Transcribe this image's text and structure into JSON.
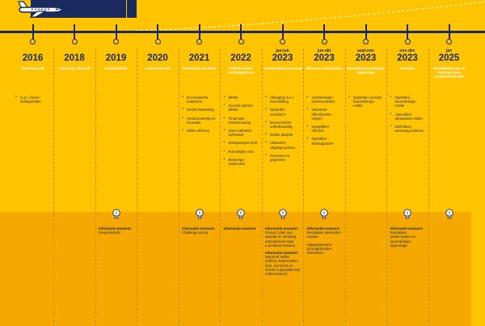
{
  "colors": {
    "navy": "#1a2a5e",
    "yellow": "#FFC300",
    "amber": "#F5A800",
    "white": "#ffffff"
  },
  "icons": {
    "plane": "airplane-icon",
    "bulb": "lightbulb-icon"
  },
  "columns": [
    {
      "pre": "",
      "year": "2016",
      "sub": "Aanvraag LHB",
      "items": [
        "m.e.r. beoor-delingsnotitie"
      ],
      "info": []
    },
    {
      "pre": "",
      "year": "2018",
      "sub": "Aanvraag Vliegveld",
      "items": [],
      "info": []
    },
    {
      "pre": "",
      "year": "2019",
      "sub": "Gesprekstafel",
      "items": [],
      "info": [
        {
          "label": "Informatie-moment:",
          "text": "Gesprekstafel"
        }
      ]
    },
    {
      "pre": "",
      "year": "2020",
      "sub": "Luchtvaart-nota",
      "items": [],
      "info": []
    },
    {
      "pre": "",
      "year": "2021",
      "sub": "Verkenning van Beek",
      "items": [
        "Economische betekenis",
        "Hinder-beperking",
        "Verduurzaming en innovatie",
        "Milieu effecten"
      ],
      "info": [
        {
          "label": "Informatie-moment:",
          "text": "Challenge group"
        }
      ]
    },
    {
      "pre": "",
      "year": "2022",
      "sub": "Politiek beleid-vormingsproces",
      "items": [
        "MKBA",
        "Second opinion MKBA",
        "Financiele onderbouwing",
        "Visie toekomst luchtvaart",
        "Werkgelegen-heid",
        "Ruimtelijke visie",
        "Belevings-onderzoek"
      ],
      "info": [
        {
          "label": "Informatie-moment",
          "text": ""
        }
      ]
    },
    {
      "pre": "jan-jun",
      "year": "2023",
      "sub": "Voorbereiding aanvraag",
      "items": [
        "Afweging m.e.r. beoordeling",
        "Opstellen scenario's",
        "Economische onderbouwing",
        "Notitie aanpak",
        "Uitwerken uitgangs-punten",
        "Invoerset en gegevens"
      ],
      "info": [
        {
          "label": "Informatie-moment:",
          "text": "Proces / plan van aanpak en vertaling amendement naar Luchthaven-besluit"
        },
        {
          "label": "Informatie-moment:",
          "text": "Wanneer welke (milieu) onderzoeken (incl. overzicht en inzicht in gevalideerde onderzoeken)"
        }
      ]
    },
    {
      "pre": "jun-okt",
      "year": "2023",
      "sub": "Uitvoeren onderzoeken",
      "items": [
        "Voorbereiden rekenmodellen",
        "Uitvoeren effectbereke-ningen",
        "Vergelijken effecten",
        "Opstellen deelrapporten"
      ],
      "info": [
        {
          "label": "Informatie-moment:",
          "text": "Resultaten deelonder-zoeken"
        },
        {
          "label": "",
          "text": "Uitgangspunten grondgebonden activiteiten"
        }
      ]
    },
    {
      "pre": "sept-nov",
      "year": "2023",
      "sub": "Opstellen beoordelings-rapportage",
      "items": [
        "Opstellen concept beoordelings-notitie"
      ],
      "info": []
    },
    {
      "pre": "nov-dec",
      "year": "2023",
      "sub": "Afronden",
      "items": [
        "Opstellen beoordelings-notitie",
        "Aanvullen/ aanpassen notitie",
        "Definitieve aanvraag indienen"
      ],
      "info": [
        {
          "label": "Informatie-moment:",
          "text": "Resultaten onderzoeken en beoordelings-rapportage"
        }
      ]
    },
    {
      "pre": "jan",
      "year": "2025",
      "sub": "Streefdatum voor in werking treden Luchthavenbesluit",
      "items": [],
      "info": []
    }
  ]
}
